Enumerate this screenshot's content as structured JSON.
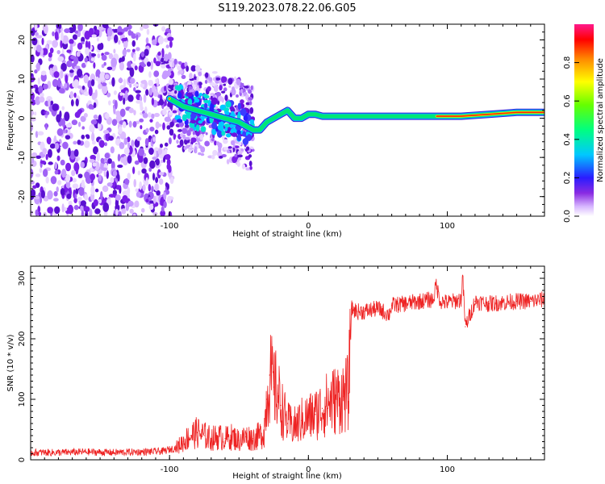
{
  "title": "S119.2023.078.22.06.G05",
  "chart_data": [
    {
      "type": "heatmap",
      "xlabel": "Height of straight line (km)",
      "ylabel": "Frequency (Hz)",
      "xlim": [
        -200,
        170
      ],
      "ylim": [
        -25,
        24
      ],
      "xticks": [
        -100,
        0,
        100
      ],
      "yticks": [
        -20,
        -10,
        0,
        10,
        20
      ],
      "colorbar": {
        "label": "Normalized spectral amplitude",
        "range": [
          0,
          1
        ],
        "ticks": [
          "0.0",
          "0.2",
          "0.4",
          "0.6",
          "0.8"
        ]
      },
      "ridge": {
        "x": [
          -100,
          -90,
          -80,
          -70,
          -60,
          -50,
          -40,
          -35,
          -30,
          -25,
          -20,
          -15,
          -10,
          -5,
          0,
          5,
          10,
          20,
          40,
          60,
          80,
          100,
          110,
          130,
          150,
          170
        ],
        "y": [
          5,
          3,
          2,
          1,
          0,
          -1,
          -3,
          -3,
          -1,
          0,
          1,
          2,
          0,
          0,
          1,
          1,
          0.5,
          0.5,
          0.5,
          0.5,
          0.5,
          0.5,
          0.5,
          1,
          1.5,
          1.5
        ]
      }
    },
    {
      "type": "line",
      "xlabel": "Height of straight line (km)",
      "ylabel": "SNR (10 * v/v)",
      "xlim": [
        -200,
        170
      ],
      "ylim": [
        0,
        320
      ],
      "xticks": [
        -100,
        0,
        100
      ],
      "yticks": [
        0,
        100,
        200,
        300
      ],
      "series": [
        {
          "color": "#ee2222",
          "x": [
            -200,
            -180,
            -160,
            -140,
            -120,
            -105,
            -95,
            -90,
            -85,
            -80,
            -75,
            -70,
            -65,
            -60,
            -55,
            -50,
            -45,
            -40,
            -35,
            -32,
            -30,
            -28,
            -25,
            -22,
            -20,
            -15,
            -10,
            -5,
            0,
            5,
            10,
            15,
            20,
            25,
            29,
            31,
            35,
            40,
            50,
            58,
            60,
            70,
            80,
            90,
            92,
            95,
            100,
            105,
            110,
            111,
            113,
            120,
            130,
            140,
            150,
            160,
            170
          ],
          "y": [
            12,
            12,
            13,
            12,
            13,
            14,
            20,
            30,
            40,
            45,
            40,
            35,
            38,
            35,
            38,
            32,
            38,
            35,
            40,
            45,
            100,
            140,
            120,
            110,
            90,
            60,
            55,
            65,
            70,
            75,
            85,
            95,
            100,
            105,
            110,
            250,
            245,
            245,
            250,
            240,
            255,
            258,
            262,
            265,
            290,
            262,
            260,
            262,
            265,
            305,
            220,
            262,
            258,
            260,
            262,
            262,
            265
          ]
        }
      ]
    }
  ]
}
